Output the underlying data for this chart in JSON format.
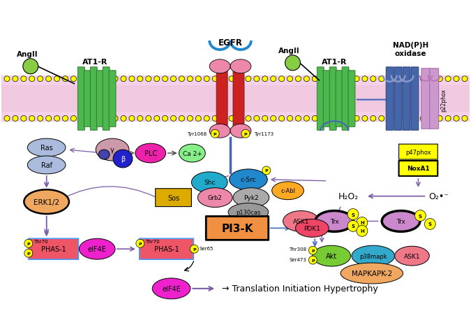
{
  "bg_color": "#ffffff",
  "arrow_color": "#7b5ea7",
  "blue_arrow": "#4466bb",
  "colors": {
    "AT1R": "#4db84d",
    "EGFR_body": "#cc2222",
    "EGFR_top": "#2288cc",
    "NADPH_body": "#4466aa",
    "p22phox": "#cc99cc",
    "p47phox": "#ffff00",
    "NoxA1": "#ffff00",
    "AngII_dot": "#88cc44",
    "Ras": "#aabbdd",
    "Raf": "#aabbdd",
    "ERK12": "#f0a860",
    "gamma_shape": "#cc99aa",
    "beta_shape": "#2222cc",
    "PLC": "#ee22aa",
    "Ca2": "#88ee88",
    "Shc": "#22aacc",
    "cSrc": "#2288cc",
    "Grb2": "#ee88aa",
    "Sos": "#ddaa00",
    "Pyk2": "#aaaaaa",
    "cAbl": "#ffaa22",
    "p130cas": "#999999",
    "PI3K": "#f09040",
    "PDK1": "#ee4466",
    "PHAS1": "#ee5566",
    "eIF4E": "#ee22cc",
    "Akt": "#77cc33",
    "p38mapk": "#33aacc",
    "ASK1": "#ee7788",
    "MAPKAPK2": "#f0a860",
    "Trx": "#cc88cc",
    "phospho": "#ffff00",
    "SH_yellow": "#ffff00",
    "membrane_pink": "#f5d0e8",
    "membrane_pink2": "#f0c8e0"
  },
  "labels": {
    "AT1R_left": "AT1-R",
    "AT1R_right": "AT1-R",
    "EGFR": "EGFR",
    "NADPH": "NAD(P)H\noxidase",
    "AngII_left": "AngII",
    "AngII_right": "AngII",
    "Ras": "Ras",
    "Raf": "Raf",
    "ERK12": "ERK1/2",
    "PLC": "PLC",
    "Ca2": "Ca 2+",
    "Shc": "Shc",
    "cSrc": "c-Src",
    "Grb2": "Grb2",
    "Sos": "Sos",
    "Pyk2": "Pyk2",
    "cAbl": "c-Abl",
    "p130cas": "p130cas",
    "PI3K": "PI3-K",
    "PDK1": "PDK1",
    "PHAS1_left": "PHAS-1",
    "eIF4E_left": "eIF4E",
    "PHAS1_right": "PHAS-1",
    "eIF4E_bottom": "eIF4E",
    "Akt": "Akt",
    "p38mapk": "p38mapk",
    "ASK1_right": "ASK1",
    "MAPKAPK2": "MAPKAPK-2",
    "Trx_left": "Trx",
    "Trx_right": "Trx",
    "ASK1_left": "ASK1",
    "p47phox": "p47phox",
    "NoxA1": "NoxA1",
    "p22phox": "p22phox",
    "H2O2": "H₂O₂",
    "O2": "O₂•⁻",
    "Tyr1068": "Tyr1068",
    "Tyr1173": "Tyr1173",
    "gamma": "γ",
    "beta": "β",
    "Thr70_left": "Thr70",
    "Thr70_right": "Thr70",
    "Ser65": "Ser65",
    "Thr308": "Thr308",
    "Ser473": "Ser473",
    "translation": "→ Translation Initiation Hypertrophy"
  }
}
